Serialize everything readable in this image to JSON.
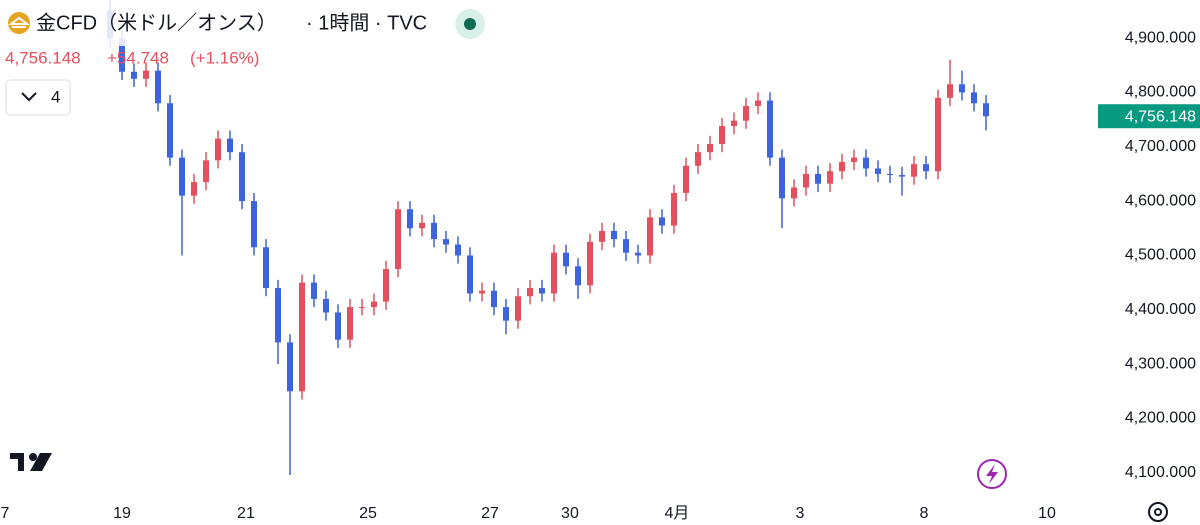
{
  "header": {
    "title": "金CFD（米ドル／オンス）",
    "interval": "· 1時間 · TVC",
    "price": "4,756.148",
    "change": "+54.748",
    "change_pct": "(+1.16%)",
    "indicator_count": "4"
  },
  "chart_data": {
    "type": "candlestick",
    "open": [
      4950,
      4900,
      4838,
      4825,
      4840,
      4780,
      4680,
      4610,
      4635,
      4675,
      4715,
      4690,
      4600,
      4515,
      4440,
      4340,
      4250,
      4450,
      4420,
      4395,
      4345,
      4405,
      4405,
      4415,
      4475,
      4585,
      4550,
      4560,
      4530,
      4520,
      4500,
      4430,
      4435,
      4405,
      4380,
      4425,
      4440,
      4430,
      4505,
      4480,
      4445,
      4525,
      4545,
      4530,
      4505,
      4500,
      4570,
      4555,
      4615,
      4665,
      4690,
      4705,
      4738,
      4748,
      4775,
      4785,
      4680,
      4605,
      4625,
      4650,
      4632,
      4655,
      4672,
      4680,
      4660,
      4650,
      4648,
      4645,
      4668,
      4655,
      4790,
      4815,
      4800,
      4780
    ],
    "high": [
      4975,
      4915,
      4853,
      4855,
      4855,
      4795,
      4695,
      4650,
      4690,
      4730,
      4730,
      4705,
      4615,
      4530,
      4455,
      4355,
      4465,
      4465,
      4435,
      4410,
      4420,
      4420,
      4430,
      4490,
      4600,
      4600,
      4575,
      4575,
      4545,
      4535,
      4515,
      4450,
      4450,
      4420,
      4440,
      4455,
      4455,
      4520,
      4520,
      4495,
      4540,
      4560,
      4560,
      4545,
      4520,
      4585,
      4585,
      4630,
      4680,
      4705,
      4720,
      4753,
      4763,
      4790,
      4800,
      4800,
      4695,
      4640,
      4665,
      4665,
      4670,
      4687,
      4695,
      4695,
      4675,
      4665,
      4663,
      4683,
      4683,
      4805,
      4860,
      4840,
      4815,
      4795
    ],
    "low": [
      4885,
      4823,
      4810,
      4810,
      4765,
      4665,
      4500,
      4595,
      4620,
      4660,
      4675,
      4585,
      4500,
      4425,
      4300,
      4096,
      4235,
      4405,
      4380,
      4330,
      4330,
      4390,
      4390,
      4400,
      4460,
      4535,
      4535,
      4515,
      4505,
      4485,
      4415,
      4415,
      4390,
      4355,
      4365,
      4410,
      4415,
      4415,
      4465,
      4420,
      4430,
      4510,
      4515,
      4490,
      4485,
      4485,
      4540,
      4540,
      4600,
      4650,
      4675,
      4690,
      4723,
      4733,
      4760,
      4665,
      4550,
      4590,
      4610,
      4617,
      4617,
      4640,
      4657,
      4645,
      4635,
      4633,
      4610,
      4630,
      4640,
      4640,
      4775,
      4785,
      4765,
      4730
    ],
    "close": [
      4900,
      4838,
      4825,
      4840,
      4780,
      4680,
      4610,
      4635,
      4675,
      4715,
      4690,
      4600,
      4515,
      4440,
      4340,
      4250,
      4450,
      4420,
      4395,
      4345,
      4405,
      4405,
      4415,
      4475,
      4585,
      4550,
      4560,
      4530,
      4520,
      4500,
      4430,
      4435,
      4405,
      4380,
      4425,
      4440,
      4430,
      4505,
      4480,
      4445,
      4525,
      4545,
      4530,
      4505,
      4500,
      4570,
      4555,
      4615,
      4665,
      4690,
      4705,
      4738,
      4748,
      4775,
      4785,
      4680,
      4605,
      4625,
      4650,
      4632,
      4655,
      4672,
      4680,
      4660,
      4650,
      4648,
      4645,
      4668,
      4655,
      4790,
      4815,
      4800,
      4780,
      4756.148
    ],
    "up_color": "#e5505f",
    "down_color": "#3d63dd",
    "xlim": [
      -9.1667,
      81.6667
    ],
    "xticks": [
      {
        "value": -8.75,
        "label": "7"
      },
      {
        "value": 1,
        "label": "19"
      },
      {
        "value": 11.33,
        "label": "21"
      },
      {
        "value": 21.5,
        "label": "25"
      },
      {
        "value": 31.67,
        "label": "27"
      },
      {
        "value": 38.33,
        "label": "30"
      },
      {
        "value": 47.25,
        "label": "4月"
      },
      {
        "value": 57.5,
        "label": "3"
      },
      {
        "value": 67.83,
        "label": "8"
      },
      {
        "value": 78.08,
        "label": "10"
      }
    ],
    "ylim": [
      4050,
      4970
    ],
    "yticks": [
      {
        "value": 4100,
        "label": "4,100.000"
      },
      {
        "value": 4200,
        "label": "4,200.000"
      },
      {
        "value": 4300,
        "label": "4,300.000"
      },
      {
        "value": 4400,
        "label": "4,400.000"
      },
      {
        "value": 4500,
        "label": "4,500.000"
      },
      {
        "value": 4600,
        "label": "4,600.000"
      },
      {
        "value": 4700,
        "label": "4,700.000"
      },
      {
        "value": 4800,
        "label": "4,800.000"
      },
      {
        "value": 4900,
        "label": "4,900.000"
      }
    ],
    "grid": false,
    "last_color": "#089981"
  }
}
